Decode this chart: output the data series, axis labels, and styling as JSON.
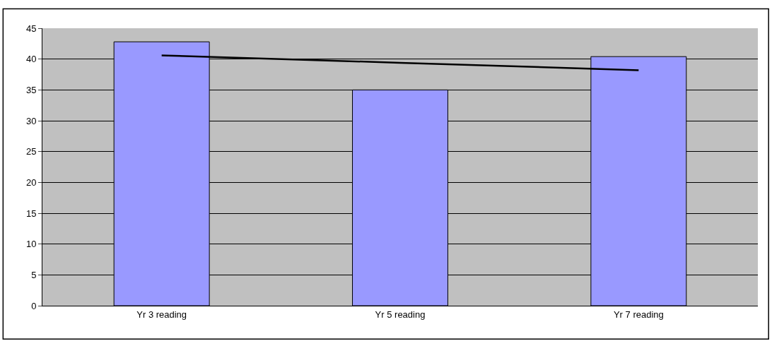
{
  "chart_data": {
    "type": "bar",
    "categories": [
      "Yr 3 reading",
      "Yr 5 reading",
      "Yr 7 reading"
    ],
    "series": [
      {
        "color": "#9999ff",
        "values": [
          42.8,
          35.0,
          40.4
        ]
      },
      {
        "type": "line",
        "color": "#000000",
        "values": [
          40.6,
          39.4,
          38.2
        ]
      }
    ],
    "ylim": [
      0,
      45
    ],
    "yticks": [
      0,
      5,
      10,
      15,
      20,
      25,
      30,
      35,
      40,
      45
    ],
    "grid": "y"
  }
}
